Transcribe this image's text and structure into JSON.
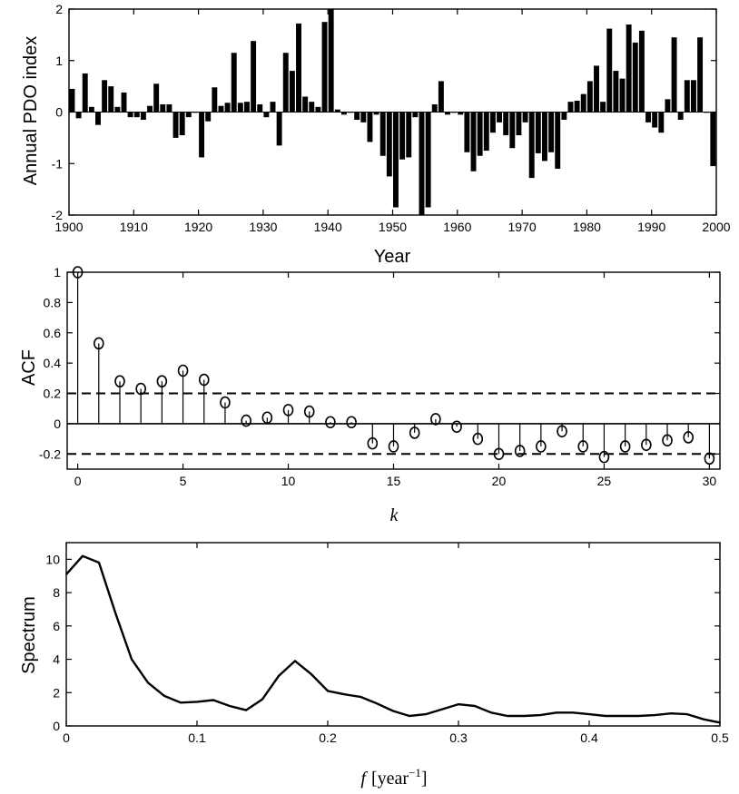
{
  "chart_data": [
    {
      "type": "bar",
      "ylabel": "Annual PDO index",
      "xlabel": "Year",
      "xlim": [
        1900,
        2000
      ],
      "ylim": [
        -2,
        2
      ],
      "xticks": [
        "1900",
        "1910",
        "1920",
        "1930",
        "1940",
        "1950",
        "1960",
        "1970",
        "1980",
        "1990",
        "2000"
      ],
      "yticks": [
        "-2",
        "-1",
        "0",
        "1",
        "2"
      ],
      "x": [
        1900,
        1901,
        1902,
        1903,
        1904,
        1905,
        1906,
        1907,
        1908,
        1909,
        1910,
        1911,
        1912,
        1913,
        1914,
        1915,
        1916,
        1917,
        1918,
        1919,
        1920,
        1921,
        1922,
        1923,
        1924,
        1925,
        1926,
        1927,
        1928,
        1929,
        1930,
        1931,
        1932,
        1933,
        1934,
        1935,
        1936,
        1937,
        1938,
        1939,
        1940,
        1941,
        1942,
        1943,
        1944,
        1945,
        1946,
        1947,
        1948,
        1949,
        1950,
        1951,
        1952,
        1953,
        1954,
        1955,
        1956,
        1957,
        1958,
        1959,
        1960,
        1961,
        1962,
        1963,
        1964,
        1965,
        1966,
        1967,
        1968,
        1969,
        1970,
        1971,
        1972,
        1973,
        1974,
        1975,
        1976,
        1977,
        1978,
        1979,
        1980,
        1981,
        1982,
        1983,
        1984,
        1985,
        1986,
        1987,
        1988,
        1989,
        1990,
        1991,
        1992,
        1993,
        1994,
        1995,
        1996,
        1997,
        1998,
        1999
      ],
      "values": [
        0.45,
        -0.12,
        0.75,
        0.1,
        -0.25,
        0.62,
        0.5,
        0.1,
        0.38,
        -0.1,
        -0.1,
        -0.15,
        0.12,
        0.55,
        0.15,
        0.15,
        -0.5,
        -0.45,
        -0.1,
        0.0,
        -0.88,
        -0.18,
        0.48,
        0.12,
        0.18,
        1.15,
        0.18,
        0.2,
        1.38,
        0.15,
        -0.1,
        0.2,
        -0.65,
        1.15,
        0.8,
        1.72,
        0.3,
        0.2,
        0.1,
        1.75,
        2.0,
        0.05,
        -0.05,
        0.0,
        -0.15,
        -0.2,
        -0.58,
        -0.05,
        -0.85,
        -1.25,
        -1.85,
        -0.92,
        -0.88,
        -0.1,
        -2.0,
        -1.85,
        0.15,
        0.6,
        -0.05,
        0.0,
        -0.05,
        -0.78,
        -1.15,
        -0.85,
        -0.75,
        -0.4,
        -0.2,
        -0.45,
        -0.7,
        -0.45,
        -0.2,
        -1.28,
        -0.8,
        -0.95,
        -0.78,
        -1.1,
        -0.15,
        0.2,
        0.22,
        0.35,
        0.6,
        0.9,
        0.2,
        1.62,
        0.8,
        0.65,
        1.7,
        1.35,
        1.58,
        -0.2,
        -0.3,
        -0.4,
        0.25,
        1.45,
        -0.15,
        0.62,
        0.62,
        1.45,
        0.0,
        -1.05
      ]
    },
    {
      "type": "stem",
      "ylabel": "ACF",
      "xlabel": "k",
      "xlim": [
        -0.5,
        30.5
      ],
      "ylim": [
        -0.3,
        1
      ],
      "xticks": [
        "0",
        "5",
        "10",
        "15",
        "20",
        "25",
        "30"
      ],
      "yticks": [
        "-0.2",
        "0",
        "0.2",
        "0.4",
        "0.6",
        "0.8",
        "1"
      ],
      "x": [
        0,
        1,
        2,
        3,
        4,
        5,
        6,
        7,
        8,
        9,
        10,
        11,
        12,
        13,
        14,
        15,
        16,
        17,
        18,
        19,
        20,
        21,
        22,
        23,
        24,
        25,
        26,
        27,
        28,
        29,
        30
      ],
      "values": [
        1.0,
        0.53,
        0.28,
        0.23,
        0.28,
        0.35,
        0.29,
        0.14,
        0.02,
        0.04,
        0.09,
        0.08,
        0.01,
        0.01,
        -0.13,
        -0.15,
        -0.06,
        0.03,
        -0.02,
        -0.1,
        -0.2,
        -0.18,
        -0.15,
        -0.05,
        -0.15,
        -0.22,
        -0.15,
        -0.14,
        -0.11,
        -0.09,
        -0.23
      ],
      "confidence_bounds": [
        0.2,
        -0.2
      ]
    },
    {
      "type": "line",
      "ylabel": "Spectrum",
      "xlabel_var": "f",
      "xlabel_unit": "[year",
      "xlabel_exp": "−1",
      "xlabel_close": "]",
      "xlim": [
        0,
        0.5
      ],
      "ylim": [
        0,
        11
      ],
      "xticks": [
        "0",
        "0.1",
        "0.2",
        "0.3",
        "0.4",
        "0.5"
      ],
      "yticks": [
        "0",
        "2",
        "4",
        "6",
        "8",
        "10"
      ],
      "x": [
        0,
        0.0125,
        0.025,
        0.0375,
        0.05,
        0.0625,
        0.075,
        0.0875,
        0.1,
        0.1125,
        0.125,
        0.1375,
        0.15,
        0.1625,
        0.175,
        0.1875,
        0.2,
        0.2125,
        0.225,
        0.2375,
        0.25,
        0.2625,
        0.275,
        0.2875,
        0.3,
        0.3125,
        0.325,
        0.3375,
        0.35,
        0.3625,
        0.375,
        0.3875,
        0.4,
        0.4125,
        0.425,
        0.4375,
        0.45,
        0.4625,
        0.475,
        0.4875,
        0.5
      ],
      "values": [
        9.1,
        10.2,
        9.8,
        6.8,
        4.0,
        2.6,
        1.8,
        1.4,
        1.45,
        1.55,
        1.2,
        0.95,
        1.6,
        3.0,
        3.9,
        3.1,
        2.1,
        1.9,
        1.75,
        1.35,
        0.9,
        0.6,
        0.7,
        1.0,
        1.3,
        1.2,
        0.8,
        0.6,
        0.6,
        0.65,
        0.8,
        0.8,
        0.7,
        0.6,
        0.6,
        0.6,
        0.65,
        0.75,
        0.7,
        0.4,
        0.2
      ]
    }
  ]
}
